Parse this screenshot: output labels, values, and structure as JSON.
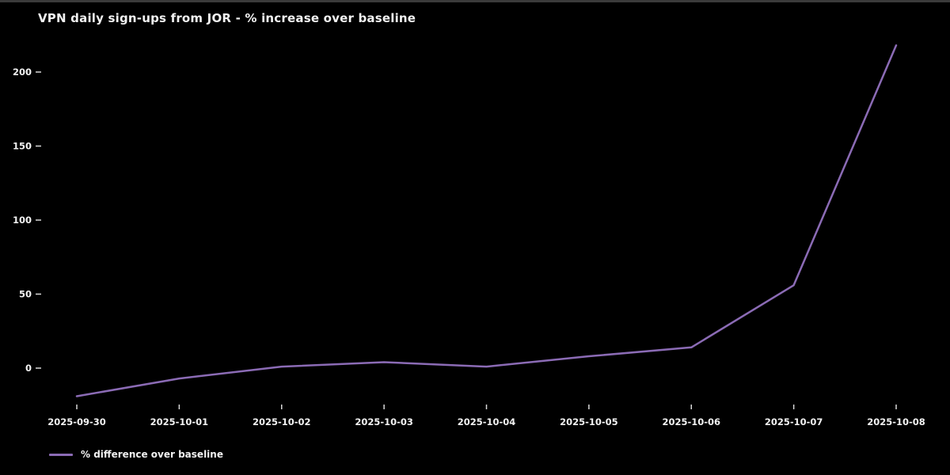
{
  "window": {
    "top_edge_color": "#3a3a3a",
    "background_color": "#000000"
  },
  "chart": {
    "title": "VPN daily sign-ups from JOR - % increase over baseline",
    "text_color": "#f2f2f2",
    "line_color": "#8b6bb5",
    "tick_mark_color": "#d9d9d9",
    "legend": {
      "label": "% difference over baseline"
    }
  },
  "chart_data": {
    "type": "line",
    "title": "VPN daily sign-ups from JOR - % increase over baseline",
    "categories": [
      "2025-09-30",
      "2025-10-01",
      "2025-10-02",
      "2025-10-03",
      "2025-10-04",
      "2025-10-05",
      "2025-10-06",
      "2025-10-07",
      "2025-10-08"
    ],
    "series": [
      {
        "name": "% difference over baseline",
        "values": [
          -19,
          -7,
          1,
          4,
          1,
          8,
          14,
          56,
          218
        ]
      }
    ],
    "xlabel": "",
    "ylabel": "",
    "y_ticks": [
      0,
      50,
      100,
      150,
      200
    ],
    "ylim": [
      -30,
      230
    ],
    "grid": false,
    "legend_position": "lower-left",
    "background": "black"
  }
}
